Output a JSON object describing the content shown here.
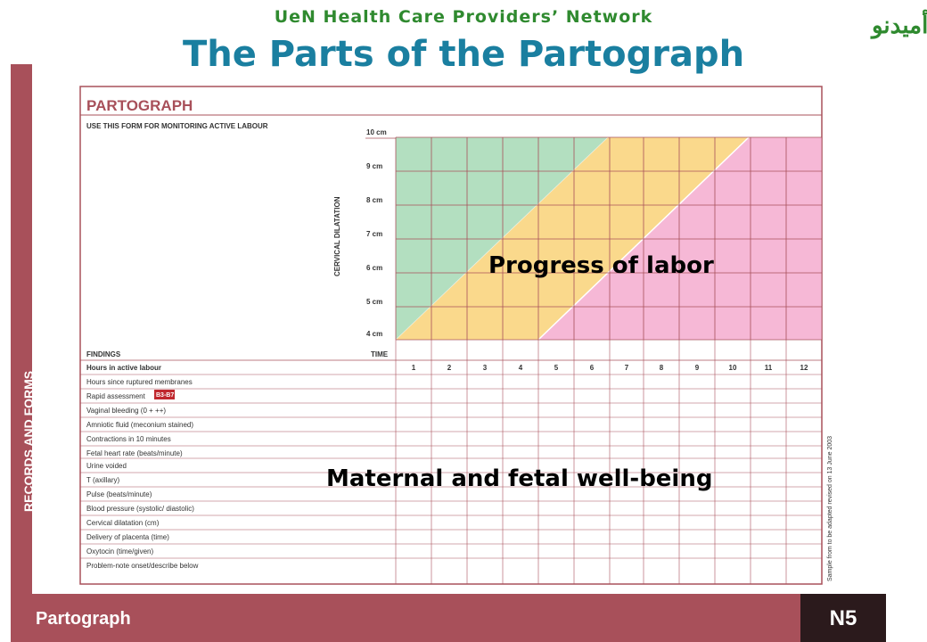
{
  "slide": {
    "network": "UeN Health Care Providers’ Network",
    "logo": "أميدنو",
    "title": "The Parts of the Partograph",
    "sidebar_text": "RECORDS AND FORMS",
    "footer_label": "Partograph",
    "footer_code": "N5"
  },
  "form": {
    "title": "PARTOGRAPH",
    "subtitle": "USE THIS FORM FOR MONITORING ACTIVE LABOUR",
    "axis_label": "CERVICAL DILATATION",
    "cm_labels": [
      "10 cm",
      "9 cm",
      "8 cm",
      "7 cm",
      "6 cm",
      "5 cm",
      "4 cm"
    ],
    "findings_label": "FINDINGS",
    "time_label": "TIME",
    "hour_numbers": [
      "1",
      "2",
      "3",
      "4",
      "5",
      "6",
      "7",
      "8",
      "9",
      "10",
      "11",
      "12"
    ],
    "rapid_badge": "B3-B7",
    "rows": [
      "Hours in active labour",
      "Hours since ruptured membranes",
      "Rapid assessment",
      "Vaginal bleeding (0 + ++)",
      "Amniotic fluid (meconium stained)",
      "Contractions in 10 minutes",
      "Fetal heart rate (beats/minute)",
      "Urine voided",
      "T (axillary)",
      "Pulse (beats/minute)",
      "Blood pressure (systolic/ diastolic)",
      "Cervical dilatation (cm)",
      "Delivery of placenta (time)",
      "Oxytocin (time/given)",
      "Problem-note onset/describe below"
    ],
    "side_note": "Sample from to be adapted revised on 13 June 2003"
  },
  "overlays": {
    "progress": "Progress of labor",
    "wellbeing": "Maternal and fetal well-being"
  },
  "colors": {
    "maroon": "#a8505a",
    "title_blue": "#1a7fa0",
    "network_green": "#2f8a2f",
    "zone_green": "#b3dfc0",
    "zone_yellow": "#fad98c",
    "zone_pink": "#f6b8d6"
  }
}
